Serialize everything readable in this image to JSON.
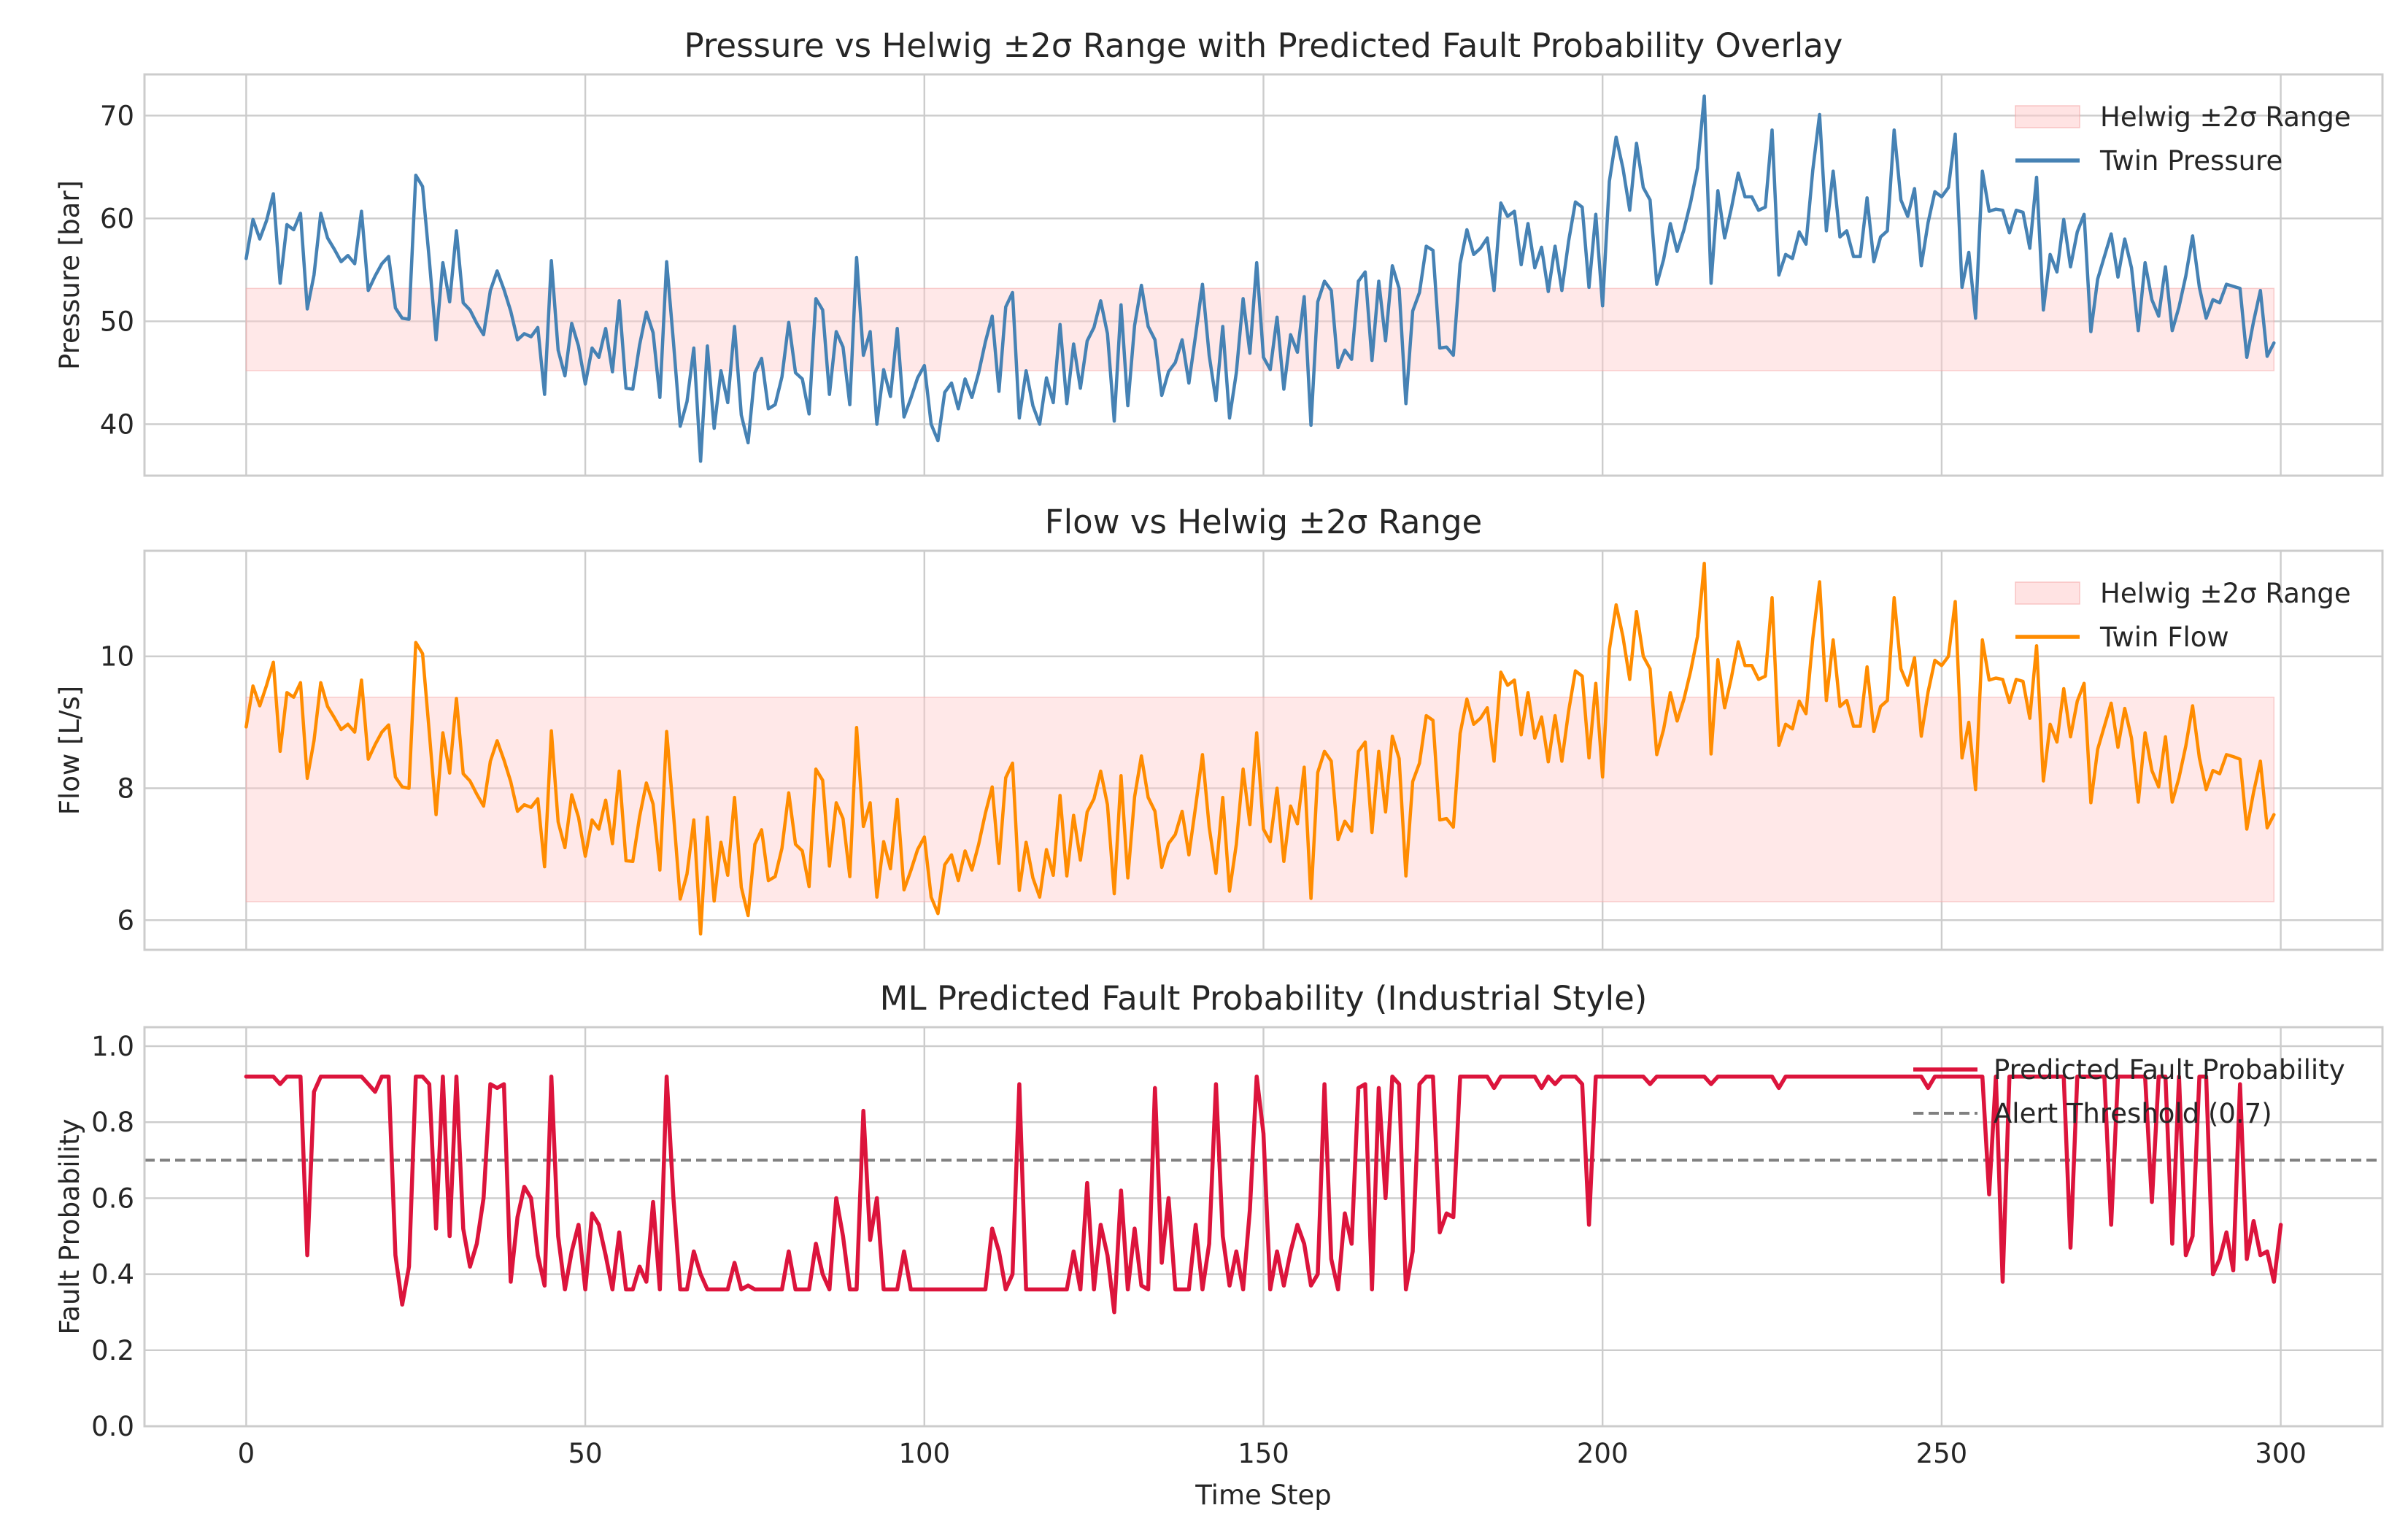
{
  "chart_data": [
    {
      "type": "line",
      "title": "Pressure vs Helwig ±2σ Range with Predicted Fault Probability Overlay",
      "xlabel": "",
      "ylabel": "Pressure [bar]",
      "xlim": [
        -15,
        315
      ],
      "ylim": [
        35,
        74
      ],
      "xticks": [
        0,
        50,
        100,
        150,
        200,
        250,
        300
      ],
      "xtick_labels": [
        "",
        "",
        "",
        "",
        "",
        "",
        ""
      ],
      "yticks": [
        40,
        50,
        60,
        70
      ],
      "ytick_labels": [
        "40",
        "50",
        "60",
        "70"
      ],
      "grid": true,
      "legend_position": "top-right",
      "legend": [
        "Helwig ±2σ Range",
        "Twin Pressure"
      ],
      "band": {
        "name": "Helwig ±2σ Range",
        "x_start": 0,
        "x_end": 299,
        "low": 45.2,
        "high": 53.2,
        "color": "#ffcccc"
      },
      "series": [
        {
          "name": "Twin Pressure",
          "color": "#4682b4",
          "x_start": 0,
          "x_step": 1,
          "values": [
            56.1,
            59.9,
            58.0,
            59.8,
            62.4,
            53.7,
            59.4,
            58.9,
            60.5,
            51.2,
            54.5,
            60.5,
            58.1,
            57.0,
            55.8,
            56.4,
            55.6,
            60.7,
            53.0,
            54.4,
            55.6,
            56.3,
            51.3,
            50.3,
            50.2,
            64.2,
            63.1,
            56.0,
            48.2,
            55.7,
            51.9,
            58.8,
            51.8,
            51.1,
            49.8,
            48.7,
            53.0,
            54.9,
            53.1,
            51.0,
            48.2,
            48.8,
            48.5,
            49.4,
            42.9,
            55.9,
            47.2,
            44.7,
            49.8,
            47.6,
            43.9,
            47.4,
            46.5,
            49.3,
            45.1,
            52.0,
            43.5,
            43.4,
            47.7,
            50.9,
            48.9,
            42.6,
            55.8,
            48.0,
            39.8,
            42.2,
            47.4,
            36.4,
            47.6,
            39.6,
            45.2,
            42.1,
            49.5,
            40.9,
            38.2,
            45.0,
            46.4,
            41.5,
            41.9,
            44.6,
            49.9,
            45.0,
            44.4,
            41.0,
            52.2,
            51.1,
            42.9,
            49.0,
            47.5,
            41.9,
            56.2,
            46.7,
            49.0,
            40.0,
            45.3,
            42.7,
            49.3,
            40.7,
            42.5,
            44.5,
            45.7,
            40.0,
            38.4,
            43.1,
            44.0,
            41.5,
            44.4,
            42.6,
            45.0,
            48.0,
            50.5,
            43.2,
            51.4,
            52.8,
            40.6,
            45.2,
            41.8,
            40.0,
            44.5,
            42.1,
            49.7,
            42.0,
            47.8,
            43.5,
            48.1,
            49.4,
            52.0,
            48.8,
            40.3,
            51.6,
            41.8,
            49.6,
            53.5,
            49.5,
            48.2,
            42.8,
            45.1,
            46.0,
            48.2,
            44.0,
            48.7,
            53.6,
            46.7,
            42.3,
            49.5,
            40.6,
            45.0,
            52.2,
            46.9,
            55.7,
            46.5,
            45.3,
            50.4,
            43.4,
            48.7,
            47.0,
            52.4,
            39.9,
            51.9,
            53.9,
            53.0,
            45.5,
            47.2,
            46.3,
            53.9,
            54.8,
            46.2,
            53.9,
            48.1,
            55.4,
            53.2,
            42.0,
            51.0,
            52.8,
            57.3,
            56.9,
            47.4,
            47.5,
            46.7,
            55.6,
            58.9,
            56.5,
            57.1,
            58.1,
            53.0,
            61.5,
            60.2,
            60.7,
            55.5,
            59.5,
            55.2,
            57.2,
            52.9,
            57.3,
            53.0,
            57.8,
            61.6,
            61.1,
            53.3,
            60.4,
            51.5,
            63.6,
            67.9,
            64.9,
            60.8,
            67.3,
            63.0,
            61.8,
            53.6,
            56.0,
            59.5,
            56.8,
            58.9,
            61.6,
            64.9,
            71.9,
            53.7,
            62.7,
            58.1,
            61.0,
            64.4,
            62.1,
            62.1,
            60.8,
            61.1,
            68.6,
            54.5,
            56.5,
            56.1,
            58.7,
            57.5,
            64.7,
            70.1,
            58.8,
            64.6,
            58.2,
            58.8,
            56.3,
            56.3,
            62.0,
            55.8,
            58.2,
            58.8,
            68.6,
            61.8,
            60.2,
            62.9,
            55.4,
            59.6,
            62.6,
            62.1,
            63.0,
            68.2,
            53.3,
            56.7,
            50.3,
            64.6,
            60.7,
            60.9,
            60.8,
            58.6,
            60.8,
            60.6,
            57.1,
            64.0,
            51.1,
            56.5,
            54.8,
            59.9,
            55.3,
            58.7,
            60.4,
            49.0,
            54.1,
            56.3,
            58.5,
            54.3,
            58.0,
            55.2,
            49.1,
            55.7,
            52.1,
            50.5,
            55.3,
            49.1,
            51.4,
            54.4,
            58.3,
            53.3,
            50.3,
            52.1,
            51.8,
            53.6,
            53.4,
            53.2,
            46.5,
            50.0,
            53.0,
            46.6,
            47.9
          ]
        }
      ]
    },
    {
      "type": "line",
      "title": "Flow vs Helwig ±2σ Range",
      "xlabel": "",
      "ylabel": "Flow [L/s]",
      "xlim": [
        -15,
        315
      ],
      "ylim": [
        5.55,
        11.6
      ],
      "xticks": [
        0,
        50,
        100,
        150,
        200,
        250,
        300
      ],
      "xtick_labels": [
        "",
        "",
        "",
        "",
        "",
        "",
        ""
      ],
      "yticks": [
        6,
        8,
        10
      ],
      "ytick_labels": [
        "6",
        "8",
        "10"
      ],
      "grid": true,
      "legend_position": "top-right",
      "legend": [
        "Helwig ±2σ Range",
        "Twin Flow"
      ],
      "band": {
        "name": "Helwig ±2σ Range",
        "x_start": 0,
        "x_end": 299,
        "low": 6.28,
        "high": 9.38,
        "color": "#ffcccc"
      },
      "series": [
        {
          "name": "Twin Flow",
          "color": "#ff8c00",
          "x_start": 0,
          "x_step": 1,
          "values": [
            8.93,
            9.55,
            9.25,
            9.56,
            9.91,
            8.56,
            9.45,
            9.38,
            9.6,
            8.15,
            8.72,
            9.6,
            9.24,
            9.07,
            8.89,
            8.97,
            8.85,
            9.64,
            8.44,
            8.66,
            8.85,
            8.96,
            8.17,
            8.02,
            8.0,
            10.21,
            10.04,
            8.85,
            7.6,
            8.84,
            8.23,
            9.36,
            8.22,
            8.11,
            7.91,
            7.73,
            8.41,
            8.72,
            8.43,
            8.1,
            7.65,
            7.75,
            7.71,
            7.84,
            6.81,
            8.87,
            7.49,
            7.1,
            7.9,
            7.56,
            6.97,
            7.52,
            7.38,
            7.82,
            7.16,
            8.26,
            6.9,
            6.89,
            7.57,
            8.08,
            7.76,
            6.76,
            8.86,
            7.62,
            6.32,
            6.7,
            7.52,
            5.79,
            7.56,
            6.29,
            7.18,
            6.68,
            7.86,
            6.5,
            6.07,
            7.15,
            7.37,
            6.6,
            6.66,
            7.09,
            7.93,
            7.15,
            7.05,
            6.51,
            8.29,
            8.12,
            6.82,
            7.78,
            7.54,
            6.66,
            8.92,
            7.42,
            7.78,
            6.35,
            7.19,
            6.78,
            7.83,
            6.46,
            6.75,
            7.07,
            7.26,
            6.35,
            6.1,
            6.84,
            6.99,
            6.6,
            7.05,
            6.76,
            7.15,
            7.62,
            8.02,
            6.86,
            8.16,
            8.38,
            6.45,
            7.18,
            6.64,
            6.35,
            7.07,
            6.68,
            7.89,
            6.67,
            7.59,
            6.91,
            7.64,
            7.84,
            8.26,
            7.75,
            6.4,
            8.19,
            6.64,
            7.87,
            8.49,
            7.86,
            7.65,
            6.8,
            7.16,
            7.3,
            7.65,
            6.99,
            7.73,
            8.51,
            7.41,
            6.71,
            7.86,
            6.44,
            7.15,
            8.29,
            7.45,
            8.84,
            7.38,
            7.19,
            8.0,
            6.89,
            7.73,
            7.46,
            8.32,
            6.33,
            8.24,
            8.56,
            8.41,
            7.22,
            7.5,
            7.35,
            8.56,
            8.7,
            7.33,
            8.56,
            7.64,
            8.79,
            8.45,
            6.67,
            8.1,
            8.38,
            9.1,
            9.03,
            7.52,
            7.54,
            7.41,
            8.83,
            9.35,
            8.97,
            9.06,
            9.22,
            8.41,
            9.76,
            9.56,
            9.64,
            8.81,
            9.45,
            8.76,
            9.08,
            8.4,
            9.1,
            8.41,
            9.17,
            9.78,
            9.7,
            8.46,
            9.59,
            8.17,
            10.1,
            10.78,
            10.3,
            9.65,
            10.68,
            10.0,
            9.81,
            8.51,
            8.89,
            9.45,
            9.02,
            9.35,
            9.78,
            10.3,
            11.41,
            8.52,
            9.95,
            9.22,
            9.68,
            10.22,
            9.86,
            9.86,
            9.65,
            9.7,
            10.89,
            8.65,
            8.97,
            8.9,
            9.32,
            9.13,
            10.27,
            11.13,
            9.33,
            10.25,
            9.24,
            9.33,
            8.94,
            8.94,
            9.84,
            8.86,
            9.24,
            9.33,
            10.89,
            9.81,
            9.56,
            9.98,
            8.79,
            9.46,
            9.94,
            9.86,
            10.0,
            10.83,
            8.46,
            9.0,
            7.98,
            10.25,
            9.64,
            9.67,
            9.65,
            9.3,
            9.65,
            9.62,
            9.06,
            10.16,
            8.11,
            8.97,
            8.7,
            9.51,
            8.78,
            9.32,
            9.59,
            7.78,
            8.59,
            8.94,
            9.29,
            8.62,
            9.21,
            8.76,
            7.79,
            8.84,
            8.27,
            8.02,
            8.78,
            7.79,
            8.16,
            8.64,
            9.25,
            8.46,
            7.98,
            8.27,
            8.22,
            8.51,
            8.48,
            8.44,
            7.38,
            7.94,
            8.41,
            7.4,
            7.6
          ]
        }
      ]
    },
    {
      "type": "line",
      "title": "ML Predicted Fault Probability (Industrial Style)",
      "xlabel": "Time Step",
      "ylabel": "Fault Probability",
      "xlim": [
        -15,
        315
      ],
      "ylim": [
        0,
        1.05
      ],
      "xticks": [
        0,
        50,
        100,
        150,
        200,
        250,
        300
      ],
      "xtick_labels": [
        "0",
        "50",
        "100",
        "150",
        "200",
        "250",
        "300"
      ],
      "yticks": [
        0.0,
        0.2,
        0.4,
        0.6,
        0.8,
        1.0
      ],
      "ytick_labels": [
        "0.0",
        "0.2",
        "0.4",
        "0.6",
        "0.8",
        "1.0"
      ],
      "grid": true,
      "legend_position": "top-right",
      "legend": [
        "Predicted Fault Probability",
        "Alert Threshold (0.7)"
      ],
      "threshold": {
        "name": "Alert Threshold (0.7)",
        "value": 0.7,
        "color": "#808080",
        "style": "dashed"
      },
      "series": [
        {
          "name": "Predicted Fault Probability",
          "color": "#dc143c",
          "x_start": 0,
          "x_step": 1,
          "values": [
            0.92,
            0.92,
            0.92,
            0.92,
            0.92,
            0.9,
            0.92,
            0.92,
            0.92,
            0.45,
            0.88,
            0.92,
            0.92,
            0.92,
            0.92,
            0.92,
            0.92,
            0.92,
            0.9,
            0.88,
            0.92,
            0.92,
            0.45,
            0.32,
            0.42,
            0.92,
            0.92,
            0.9,
            0.52,
            0.92,
            0.5,
            0.92,
            0.52,
            0.42,
            0.48,
            0.6,
            0.9,
            0.89,
            0.9,
            0.38,
            0.55,
            0.63,
            0.6,
            0.45,
            0.37,
            0.92,
            0.5,
            0.36,
            0.46,
            0.53,
            0.36,
            0.56,
            0.53,
            0.45,
            0.36,
            0.51,
            0.36,
            0.36,
            0.42,
            0.38,
            0.59,
            0.36,
            0.92,
            0.6,
            0.36,
            0.36,
            0.46,
            0.4,
            0.36,
            0.36,
            0.36,
            0.36,
            0.43,
            0.36,
            0.37,
            0.36,
            0.36,
            0.36,
            0.36,
            0.36,
            0.46,
            0.36,
            0.36,
            0.36,
            0.48,
            0.4,
            0.36,
            0.6,
            0.5,
            0.36,
            0.36,
            0.83,
            0.49,
            0.6,
            0.36,
            0.36,
            0.36,
            0.46,
            0.36,
            0.36,
            0.36,
            0.36,
            0.36,
            0.36,
            0.36,
            0.36,
            0.36,
            0.36,
            0.36,
            0.36,
            0.52,
            0.46,
            0.36,
            0.4,
            0.9,
            0.36,
            0.36,
            0.36,
            0.36,
            0.36,
            0.36,
            0.36,
            0.46,
            0.36,
            0.64,
            0.36,
            0.53,
            0.45,
            0.3,
            0.62,
            0.36,
            0.52,
            0.37,
            0.36,
            0.89,
            0.43,
            0.6,
            0.36,
            0.36,
            0.36,
            0.53,
            0.36,
            0.48,
            0.9,
            0.5,
            0.37,
            0.46,
            0.36,
            0.57,
            0.92,
            0.77,
            0.36,
            0.46,
            0.37,
            0.46,
            0.53,
            0.48,
            0.37,
            0.4,
            0.9,
            0.44,
            0.36,
            0.56,
            0.48,
            0.89,
            0.9,
            0.36,
            0.89,
            0.6,
            0.92,
            0.9,
            0.36,
            0.46,
            0.9,
            0.92,
            0.92,
            0.51,
            0.56,
            0.55,
            0.92,
            0.92,
            0.92,
            0.92,
            0.92,
            0.89,
            0.92,
            0.92,
            0.92,
            0.92,
            0.92,
            0.92,
            0.89,
            0.92,
            0.9,
            0.92,
            0.92,
            0.92,
            0.9,
            0.53,
            0.92,
            0.92,
            0.92,
            0.92,
            0.92,
            0.92,
            0.92,
            0.92,
            0.9,
            0.92,
            0.92,
            0.92,
            0.92,
            0.92,
            0.92,
            0.92,
            0.92,
            0.9,
            0.92,
            0.92,
            0.92,
            0.92,
            0.92,
            0.92,
            0.92,
            0.92,
            0.92,
            0.89,
            0.92,
            0.92,
            0.92,
            0.92,
            0.92,
            0.92,
            0.92,
            0.92,
            0.92,
            0.92,
            0.92,
            0.92,
            0.92,
            0.92,
            0.92,
            0.92,
            0.92,
            0.92,
            0.92,
            0.92,
            0.92,
            0.89,
            0.92,
            0.92,
            0.92,
            0.92,
            0.92,
            0.92,
            0.92,
            0.92,
            0.61,
            0.92,
            0.38,
            0.92,
            0.92,
            0.92,
            0.92,
            0.92,
            0.92,
            0.92,
            0.92,
            0.92,
            0.47,
            0.92,
            0.92,
            0.92,
            0.92,
            0.92,
            0.53,
            0.92,
            0.92,
            0.92,
            0.92,
            0.92,
            0.59,
            0.92,
            0.92,
            0.48,
            0.92,
            0.45,
            0.5,
            0.92,
            0.92,
            0.4,
            0.44,
            0.51,
            0.41,
            0.9,
            0.44,
            0.54,
            0.45,
            0.46,
            0.38,
            0.53
          ]
        }
      ]
    }
  ]
}
